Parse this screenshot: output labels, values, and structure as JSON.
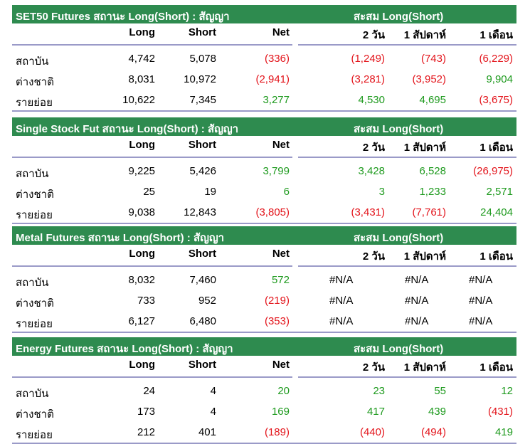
{
  "columns": {
    "long": "Long",
    "short": "Short",
    "net": "Net",
    "d2": "2 วัน",
    "w1": "1 สัปดาห์",
    "m1": "1 เดือน"
  },
  "accum_label": "สะสม Long(Short)",
  "sections": [
    {
      "title": "SET50 Futures สถานะ Long(Short) : สัญญา",
      "rows": [
        {
          "label": "สถาบัน",
          "long": "4,742",
          "short": "5,078",
          "net": "(336)",
          "d2": "(1,249)",
          "w1": "(743)",
          "m1": "(6,229)"
        },
        {
          "label": "ต่างชาติ",
          "long": "8,031",
          "short": "10,972",
          "net": "(2,941)",
          "d2": "(3,281)",
          "w1": "(3,952)",
          "m1": "9,904"
        },
        {
          "label": "รายย่อย",
          "long": "10,622",
          "short": "7,345",
          "net": "3,277",
          "d2": "4,530",
          "w1": "4,695",
          "m1": "(3,675)"
        }
      ]
    },
    {
      "title": "Single Stock Fut สถานะ Long(Short) : สัญญา",
      "rows": [
        {
          "label": "สถาบัน",
          "long": "9,225",
          "short": "5,426",
          "net": "3,799",
          "d2": "3,428",
          "w1": "6,528",
          "m1": "(26,975)"
        },
        {
          "label": "ต่างชาติ",
          "long": "25",
          "short": "19",
          "net": "6",
          "d2": "3",
          "w1": "1,233",
          "m1": "2,571"
        },
        {
          "label": "รายย่อย",
          "long": "9,038",
          "short": "12,843",
          "net": "(3,805)",
          "d2": "(3,431)",
          "w1": "(7,761)",
          "m1": "24,404"
        }
      ]
    },
    {
      "title": "Metal Futures สถานะ Long(Short) : สัญญา",
      "rows": [
        {
          "label": "สถาบัน",
          "long": "8,032",
          "short": "7,460",
          "net": "572",
          "d2": "#N/A",
          "w1": "#N/A",
          "m1": "#N/A"
        },
        {
          "label": "ต่างชาติ",
          "long": "733",
          "short": "952",
          "net": "(219)",
          "d2": "#N/A",
          "w1": "#N/A",
          "m1": "#N/A"
        },
        {
          "label": "รายย่อย",
          "long": "6,127",
          "short": "6,480",
          "net": "(353)",
          "d2": "#N/A",
          "w1": "#N/A",
          "m1": "#N/A"
        }
      ]
    },
    {
      "title": "Energy Futures สถานะ Long(Short) : สัญญา",
      "rows": [
        {
          "label": "สถาบัน",
          "long": "24",
          "short": "4",
          "net": "20",
          "d2": "23",
          "w1": "55",
          "m1": "12"
        },
        {
          "label": "ต่างชาติ",
          "long": "173",
          "short": "4",
          "net": "169",
          "d2": "417",
          "w1": "439",
          "m1": "(431)"
        },
        {
          "label": "รายย่อย",
          "long": "212",
          "short": "401",
          "net": "(189)",
          "d2": "(440)",
          "w1": "(494)",
          "m1": "419"
        }
      ]
    }
  ],
  "colors": {
    "header_bg": "#2e8b4f",
    "negative": "#e3141b",
    "positive": "#1e9a1e",
    "rule": "#9a9ac8"
  }
}
